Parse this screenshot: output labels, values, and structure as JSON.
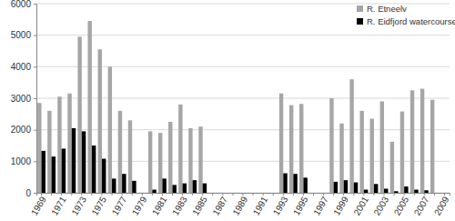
{
  "chart_data": {
    "type": "bar",
    "categories": [
      "1969",
      null,
      "1971",
      null,
      "1973",
      null,
      "1975",
      null,
      "1977",
      null,
      "1979",
      null,
      "1981",
      null,
      "1983",
      null,
      "1985",
      null,
      "1987",
      null,
      "1989",
      null,
      "1991",
      null,
      "1993",
      null,
      "1995",
      null,
      "1997",
      null,
      "1999",
      null,
      "2001",
      null,
      "2003",
      null,
      "2005",
      null,
      "2007",
      null,
      "2009"
    ],
    "series": [
      {
        "name": "R. Etneelv",
        "color": "#a6a6a6",
        "values": [
          2850,
          2600,
          3050,
          3150,
          4950,
          5450,
          4550,
          4000,
          2600,
          2300,
          null,
          1950,
          1900,
          2250,
          2800,
          2050,
          2100,
          null,
          null,
          null,
          null,
          null,
          null,
          null,
          3150,
          2780,
          2820,
          null,
          null,
          3000,
          2200,
          3600,
          2600,
          2350,
          2900,
          1620,
          2580,
          3250,
          3300,
          2950,
          null
        ]
      },
      {
        "name": "R. Eidfjord watercourse",
        "color": "#000000",
        "values": [
          1330,
          1150,
          1400,
          2050,
          1950,
          1500,
          1080,
          450,
          600,
          380,
          null,
          100,
          450,
          250,
          300,
          400,
          300,
          null,
          null,
          null,
          null,
          null,
          null,
          null,
          620,
          600,
          480,
          null,
          null,
          350,
          400,
          330,
          100,
          280,
          130,
          50,
          200,
          100,
          80,
          null,
          null
        ]
      }
    ],
    "ylim": [
      0,
      6000
    ],
    "yticks": [
      0,
      1000,
      2000,
      3000,
      4000,
      5000,
      6000
    ],
    "grid": true,
    "legend": "top-right"
  }
}
